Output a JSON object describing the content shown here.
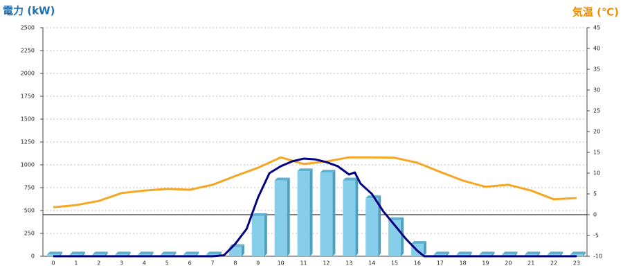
{
  "chart_data": {
    "type": "bar",
    "y_label": "電力 (kW)",
    "y2_label": "気温 (℃)",
    "categories": [
      "0",
      "1",
      "2",
      "3",
      "4",
      "5",
      "6",
      "7",
      "8",
      "9",
      "10",
      "11",
      "12",
      "13",
      "14",
      "15",
      "16",
      "17",
      "18",
      "19",
      "20",
      "21",
      "22",
      "23"
    ],
    "values": [
      20,
      20,
      20,
      20,
      20,
      20,
      20,
      20,
      100,
      440,
      830,
      930,
      915,
      830,
      635,
      395,
      135,
      20,
      20,
      20,
      20,
      20,
      20,
      20
    ],
    "color": "#87ceeb",
    "series": [
      {
        "color": "#f5a623",
        "axis": "y2",
        "values": [
          1.8,
          2.3,
          3.3,
          5.2,
          5.8,
          6.2,
          6,
          7.2,
          9.3,
          11.3,
          13.8,
          12.2,
          12.8,
          13.8,
          13.8,
          13.7,
          12.5,
          10.3,
          8.2,
          6.7,
          7.2,
          5.8,
          3.7,
          4
        ]
      },
      {
        "color": "#000080",
        "x": [
          0,
          7,
          7.5,
          8,
          8.5,
          9,
          9.5,
          10,
          10.5,
          11,
          11.5,
          12,
          12.5,
          13,
          13.25,
          13.5,
          14,
          14.5,
          15,
          15.5,
          16,
          16.3,
          23
        ],
        "values": [
          0,
          0,
          10,
          136,
          300,
          644,
          909,
          985,
          1038,
          1068,
          1060,
          1030,
          985,
          894,
          917,
          795,
          682,
          492,
          341,
          189,
          60,
          0,
          0
        ]
      }
    ],
    "ylim": [
      0,
      2500
    ],
    "yticks": [
      0,
      250,
      500,
      750,
      1000,
      1250,
      1500,
      1750,
      2000,
      2250,
      2500
    ],
    "y2lim": [
      -10,
      45
    ],
    "y2ticks": [
      -10,
      -5,
      0,
      5,
      10,
      15,
      20,
      25,
      30,
      35,
      40,
      45
    ],
    "grid": true
  }
}
